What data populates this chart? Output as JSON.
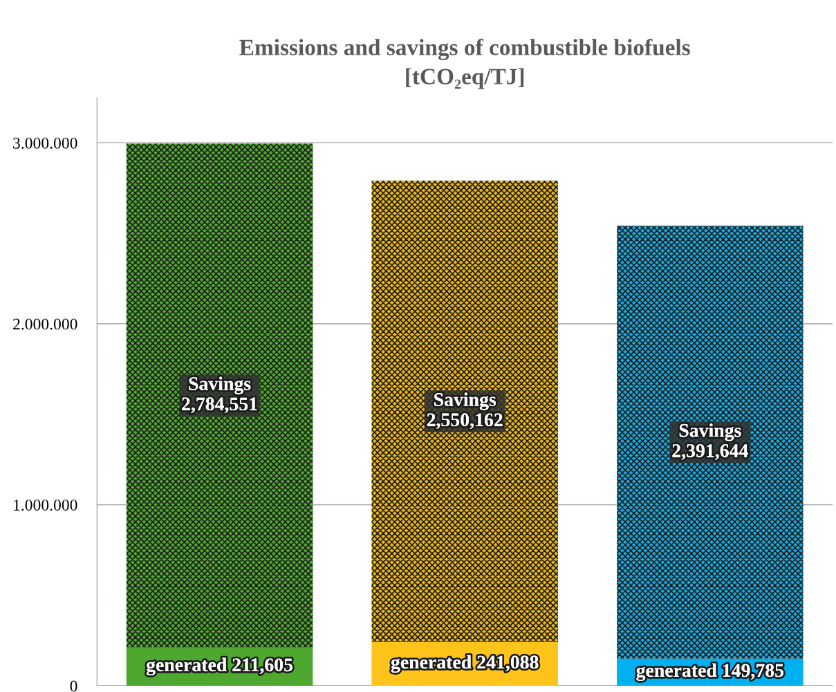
{
  "chart_data": {
    "type": "bar",
    "title": "Emissions and savings of combustible biofuels\n[tCO₂eq/TJ]",
    "categories": [
      null,
      null,
      null
    ],
    "stacked": true,
    "series": [
      {
        "colors": [
          "#4ea72e",
          "#ffc41a",
          "#00b0f0"
        ],
        "values": [
          211605,
          241088,
          149785
        ],
        "value_labels": [
          "generated 211,605",
          "generated 241,088",
          "generated 149,785"
        ]
      },
      {
        "colors": [
          "#4ea72e",
          "#e8b41a",
          "#1aa6d8"
        ],
        "values": [
          2784551,
          2550162,
          2391644
        ],
        "value_labels": [
          "Savings\n2,784,551",
          "Savings\n2,550,162",
          "Savings\n2,391,644"
        ]
      }
    ],
    "ylim": [
      0,
      3250000
    ],
    "yticks": [
      0,
      {
        "value": 1000000,
        "label": "1.000.000"
      },
      {
        "value": 2000000,
        "label": "2.000.000"
      },
      {
        "value": 3000000,
        "label": "3.000.000"
      }
    ],
    "grid": "y",
    "legend": false
  }
}
